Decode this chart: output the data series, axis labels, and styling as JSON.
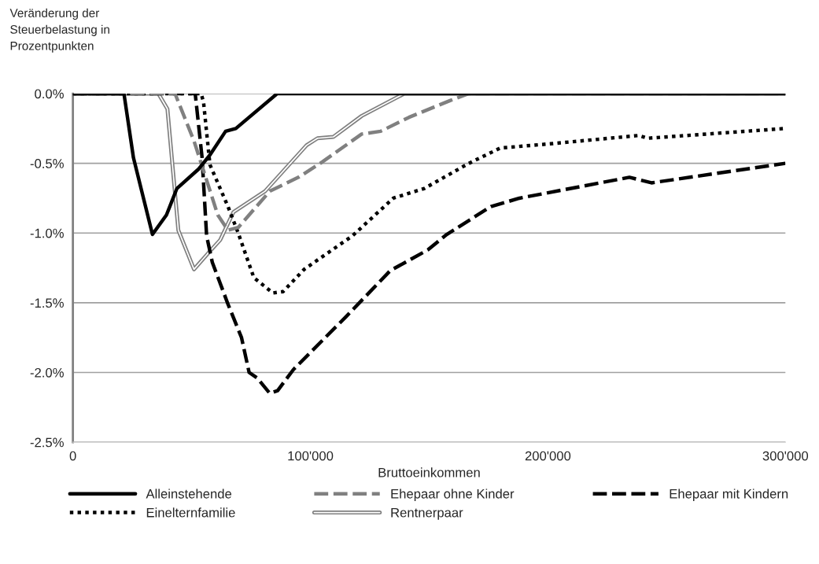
{
  "chart_data": {
    "type": "line",
    "xlabel": "Bruttoeinkommen",
    "ylabel": "Veränderung der\nSteuerbelastung in\nProzentpunkten",
    "xlim": [
      0,
      300000
    ],
    "xticks": [
      0,
      {
        "value": 100000,
        "label": "100'000"
      },
      {
        "value": 200000,
        "label": "200'000"
      },
      {
        "value": 300000,
        "label": "300'000"
      }
    ],
    "ylim": [
      -2.5,
      0
    ],
    "yticks": [
      {
        "value": -2.5,
        "label": "-2.5%"
      },
      {
        "value": -2.0,
        "label": "-2.0%"
      },
      {
        "value": -1.5,
        "label": "-1.5%"
      },
      {
        "value": -1.0,
        "label": "-1.0%"
      },
      {
        "value": -0.5,
        "label": "-0.5%"
      },
      {
        "value": 0,
        "label": "0.0%"
      }
    ],
    "grid": "y",
    "legend": "bottom",
    "marker": "none",
    "series": [
      {
        "name": "Alleinstehende",
        "color": "#000000",
        "line_style": "solid",
        "x": [
          0,
          21500,
          25500,
          33500,
          39400,
          43800,
          53000,
          57700,
          64300,
          68600,
          86000,
          300000
        ],
        "values": [
          0,
          0,
          -0.46,
          -1.01,
          -0.87,
          -0.68,
          -0.54,
          -0.44,
          -0.27,
          -0.25,
          0,
          0
        ]
      },
      {
        "name": "Ehepaar ohne Kinder",
        "color": "#808080",
        "line_style": "dashed",
        "x": [
          0,
          43000,
          51000,
          61000,
          65300,
          69600,
          82900,
          95000,
          105000,
          121600,
          129600,
          141500,
          158800,
          166700,
          300000
        ],
        "values": [
          0,
          0,
          -0.34,
          -0.87,
          -0.98,
          -0.96,
          -0.7,
          -0.6,
          -0.49,
          -0.29,
          -0.27,
          -0.17,
          -0.05,
          0,
          0
        ]
      },
      {
        "name": "Ehepaar mit Kindern",
        "color": "#000000",
        "line_style": "dashed",
        "x": [
          0,
          51500,
          54400,
          56300,
          58700,
          65300,
          71000,
          74200,
          77600,
          82900,
          86200,
          92800,
          115000,
          133600,
          149500,
          157400,
          176000,
          188000,
          234300,
          243600,
          300000
        ],
        "values": [
          0,
          0,
          -0.46,
          -1.02,
          -1.21,
          -1.51,
          -1.75,
          -2.0,
          -2.04,
          -2.15,
          -2.13,
          -1.98,
          -1.6,
          -1.27,
          -1.12,
          -1.01,
          -0.81,
          -0.75,
          -0.6,
          -0.64,
          -0.5
        ]
      },
      {
        "name": "Einelternfamilie",
        "color": "#000000",
        "line_style": "dotted",
        "x": [
          0,
          54000,
          55000,
          57700,
          65300,
          69600,
          76200,
          84200,
          88500,
          97400,
          117700,
          134900,
          148000,
          166700,
          180000,
          201000,
          238300,
          242000,
          300000
        ],
        "values": [
          0,
          0,
          -0.06,
          -0.51,
          -0.81,
          -1.0,
          -1.32,
          -1.43,
          -1.42,
          -1.26,
          -1.02,
          -0.75,
          -0.68,
          -0.5,
          -0.39,
          -0.36,
          -0.3,
          -0.32,
          -0.25
        ]
      },
      {
        "name": "Rentnerpaar",
        "color": "#7f7f7f",
        "line_style": "solid",
        "x": [
          0,
          36000,
          39800,
          44400,
          51000,
          57700,
          62000,
          67600,
          80900,
          98400,
          103000,
          109700,
          121600,
          139500,
          300000
        ],
        "values": [
          0,
          0,
          -0.11,
          -0.98,
          -1.26,
          -1.13,
          -1.05,
          -0.85,
          -0.7,
          -0.37,
          -0.32,
          -0.31,
          -0.16,
          0,
          0
        ]
      }
    ]
  }
}
